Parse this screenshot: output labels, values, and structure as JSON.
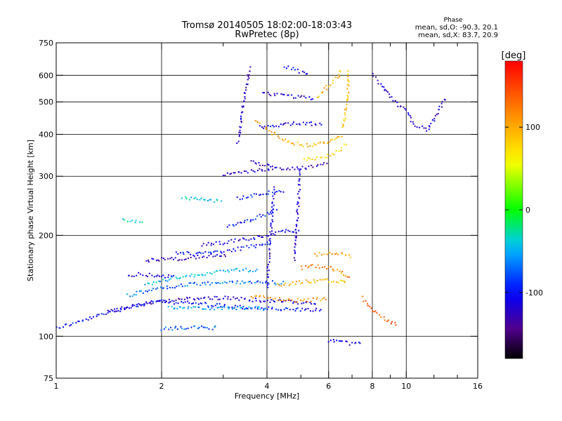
{
  "chart_data": {
    "type": "scatter",
    "title": "Tromsø 20140505 18:02:00-18:03:43",
    "subtitle": "RwPretec (8p)",
    "xlabel": "Frequency [MHz]",
    "ylabel": "Stationary phase Virtual Height [km]",
    "x_scale": "log",
    "y_scale": "log",
    "xlim": [
      1,
      16
    ],
    "ylim": [
      75,
      750
    ],
    "x_ticks": [
      {
        "value": 1,
        "label": "1"
      },
      {
        "value": 2,
        "label": "2"
      },
      {
        "value": 4,
        "label": "4"
      },
      {
        "value": 6,
        "label": "6"
      },
      {
        "value": 8,
        "label": "8"
      },
      {
        "value": 10,
        "label": "10"
      },
      {
        "value": 16,
        "label": "16"
      }
    ],
    "x_minor_ticks": [
      3,
      5,
      7,
      9,
      12,
      14
    ],
    "y_ticks": [
      {
        "value": 75,
        "label": "75"
      },
      {
        "value": 100,
        "label": "100"
      },
      {
        "value": 200,
        "label": "200"
      },
      {
        "value": 300,
        "label": "300"
      },
      {
        "value": 400,
        "label": "400"
      },
      {
        "value": 500,
        "label": "500"
      },
      {
        "value": 600,
        "label": "600"
      },
      {
        "value": 750,
        "label": "750"
      }
    ],
    "grid": true,
    "stats_title": "Phase",
    "stats_lines": [
      "mean, sd,O: -90.3, 20.1",
      "mean, sd,X: 83.7, 20.9"
    ],
    "colorbar": {
      "label": "[deg]",
      "min": -180,
      "max": 180,
      "ticks": [
        {
          "value": 100,
          "label": "100"
        },
        {
          "value": 0,
          "label": "0"
        },
        {
          "value": -100,
          "label": "-100"
        }
      ]
    },
    "traces": [
      {
        "f": [
          1.0,
          1.15,
          1.35,
          1.6,
          1.9,
          2.3,
          2.8,
          3.4,
          4.0,
          4.6,
          5.2,
          5.8
        ],
        "h": [
          106,
          110,
          116,
          122,
          127,
          126,
          124,
          122,
          121,
          120,
          120,
          120
        ],
        "phase": -100
      },
      {
        "f": [
          1.4,
          1.7,
          2.1,
          2.6,
          3.2,
          3.8,
          4.4,
          5.0,
          5.6
        ],
        "h": [
          118,
          124,
          128,
          130,
          130,
          128,
          127,
          126,
          125
        ],
        "phase": -120
      },
      {
        "f": [
          1.6,
          1.9,
          2.3,
          2.8,
          3.3,
          3.9,
          4.5
        ],
        "h": [
          132,
          138,
          142,
          144,
          145,
          145,
          144
        ],
        "phase": -70
      },
      {
        "f": [
          1.8,
          2.1,
          2.5,
          2.9,
          3.3,
          3.8
        ],
        "h": [
          143,
          148,
          152,
          156,
          158,
          157
        ],
        "phase": -45
      },
      {
        "f": [
          2.1,
          2.5,
          3.0,
          3.5,
          4.0
        ],
        "h": [
          122,
          122,
          121,
          121,
          121
        ],
        "phase": -55
      },
      {
        "f": [
          2.0,
          2.3,
          2.6,
          2.9
        ],
        "h": [
          105,
          106,
          106,
          106
        ],
        "phase": -75
      },
      {
        "f": [
          1.8,
          2.0,
          2.2,
          2.5,
          2.8,
          3.1
        ],
        "h": [
          168,
          170,
          170,
          172,
          174,
          175
        ],
        "phase": -125
      },
      {
        "f": [
          1.6,
          1.75,
          1.9,
          2.05,
          2.2
        ],
        "h": [
          152,
          153,
          152,
          151,
          150
        ],
        "phase": -115
      },
      {
        "f": [
          2.2,
          2.5,
          2.9,
          3.3,
          3.7,
          4.1
        ],
        "h": [
          178,
          176,
          178,
          182,
          186,
          190
        ],
        "phase": -100
      },
      {
        "f": [
          2.6,
          3.0,
          3.4,
          3.8,
          4.2,
          4.6,
          5.0
        ],
        "h": [
          188,
          190,
          194,
          198,
          202,
          206,
          208
        ],
        "phase": -110
      },
      {
        "f": [
          3.1,
          3.4,
          3.7,
          4.0,
          4.3
        ],
        "h": [
          212,
          218,
          226,
          232,
          240
        ],
        "phase": -95
      },
      {
        "f": [
          1.55,
          1.62,
          1.7,
          1.78
        ],
        "h": [
          222,
          220,
          220,
          222
        ],
        "phase": -35
      },
      {
        "f": [
          2.3,
          2.5,
          2.7,
          2.9,
          3.0
        ],
        "h": [
          258,
          256,
          255,
          254,
          254
        ],
        "phase": -40
      },
      {
        "f": [
          3.3,
          3.6,
          3.9,
          4.2,
          4.5
        ],
        "h": [
          258,
          262,
          266,
          270,
          272
        ],
        "phase": -95
      },
      {
        "f": [
          3.0,
          3.3,
          3.6,
          3.9,
          4.2
        ],
        "h": [
          302,
          306,
          310,
          314,
          318
        ],
        "phase": -120
      },
      {
        "f": [
          3.6,
          4.0,
          4.4,
          4.8,
          5.2,
          5.6,
          6.0
        ],
        "h": [
          132,
          130,
          129,
          128,
          128,
          129,
          130
        ],
        "phase": 110
      },
      {
        "f": [
          4.3,
          4.8,
          5.3,
          5.8,
          6.3,
          6.8
        ],
        "h": [
          142,
          144,
          146,
          147,
          146,
          144
        ],
        "phase": 95
      },
      {
        "f": [
          5.0,
          5.5,
          6.0,
          6.5,
          7.0
        ],
        "h": [
          160,
          162,
          160,
          156,
          150
        ],
        "phase": 120
      },
      {
        "f": [
          5.5,
          6.0,
          6.5,
          7.0
        ],
        "h": [
          175,
          178,
          176,
          172
        ],
        "phase": 105
      },
      {
        "f": [
          3.7,
          3.9,
          4.2,
          4.5,
          4.8,
          5.1,
          5.4,
          5.7,
          6.0,
          6.3,
          6.6
        ],
        "h": [
          440,
          420,
          400,
          385,
          376,
          372,
          372,
          375,
          382,
          390,
          400
        ],
        "phase": 100
      },
      {
        "f": [
          5.1,
          5.5,
          5.9,
          6.2,
          6.5,
          6.8
        ],
        "h": [
          338,
          340,
          344,
          352,
          362,
          378
        ],
        "phase": 80
      },
      {
        "f": [
          6.6,
          6.7,
          6.8,
          6.85,
          6.8
        ],
        "h": [
          420,
          470,
          520,
          570,
          620
        ],
        "phase": 90
      },
      {
        "f": [
          5.6,
          5.8,
          6.0,
          6.2,
          6.4,
          6.5
        ],
        "h": [
          520,
          540,
          560,
          580,
          600,
          630
        ],
        "phase": 100
      },
      {
        "f": [
          3.3,
          3.35,
          3.4,
          3.45,
          3.5,
          3.55,
          3.6
        ],
        "h": [
          380,
          420,
          470,
          520,
          560,
          600,
          640
        ],
        "phase": -120
      },
      {
        "f": [
          3.6,
          4.0,
          4.4,
          4.8,
          5.2,
          5.6,
          6.0
        ],
        "h": [
          330,
          322,
          318,
          316,
          318,
          322,
          330
        ],
        "phase": -125
      },
      {
        "f": [
          3.8,
          4.2,
          4.6,
          5.0,
          5.4,
          5.8
        ],
        "h": [
          420,
          425,
          430,
          432,
          430,
          425
        ],
        "phase": -110
      },
      {
        "f": [
          3.9,
          4.3,
          4.7,
          5.1,
          5.5
        ],
        "h": [
          530,
          525,
          520,
          515,
          512
        ],
        "phase": -115
      },
      {
        "f": [
          4.5,
          4.7,
          4.9,
          5.1,
          5.3
        ],
        "h": [
          640,
          630,
          620,
          610,
          600
        ],
        "phase": -105
      },
      {
        "f": [
          4.8,
          4.85,
          4.9,
          4.95,
          5.0
        ],
        "h": [
          170,
          200,
          240,
          280,
          320
        ],
        "phase": -120
      },
      {
        "f": [
          4.0,
          4.05,
          4.1,
          4.15,
          4.2
        ],
        "h": [
          140,
          170,
          200,
          240,
          280
        ],
        "phase": -115
      },
      {
        "f": [
          8.0,
          8.5,
          9.0,
          9.5,
          10.0,
          10.5,
          11.5,
          13.0
        ],
        "h": [
          600,
          560,
          520,
          490,
          470,
          430,
          410,
          520
        ],
        "phase": -120
      },
      {
        "f": [
          7.5,
          8.0,
          8.5,
          9.0,
          9.5
        ],
        "h": [
          130,
          120,
          115,
          110,
          108
        ],
        "phase": 140
      },
      {
        "f": [
          6.0,
          6.5,
          7.0,
          7.5
        ],
        "h": [
          97,
          96,
          95,
          95
        ],
        "phase": -110
      }
    ]
  }
}
